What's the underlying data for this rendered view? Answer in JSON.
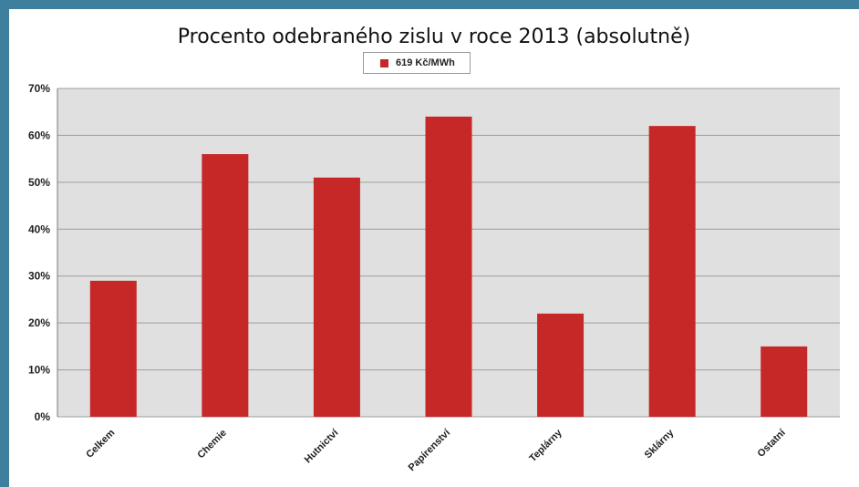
{
  "chart_data": {
    "type": "bar",
    "title": "Procento odebraného zislu v roce 2013 (absolutně)",
    "legend": "619 Kč/MWh",
    "legend_placement": "top",
    "categories": [
      "Celkem",
      "Chemie",
      "Hutnictví",
      "Papírenství",
      "Teplárny",
      "Sklárny",
      "Ostatní"
    ],
    "values": [
      29,
      56,
      51,
      64,
      22,
      62,
      15
    ],
    "y_ticks": [
      "0%",
      "10%",
      "20%",
      "30%",
      "40%",
      "50%",
      "60%",
      "70%"
    ],
    "ylim": [
      0,
      70
    ],
    "grid": true,
    "bar_color": "#c62828",
    "plot_background": "#e0e0e0"
  }
}
